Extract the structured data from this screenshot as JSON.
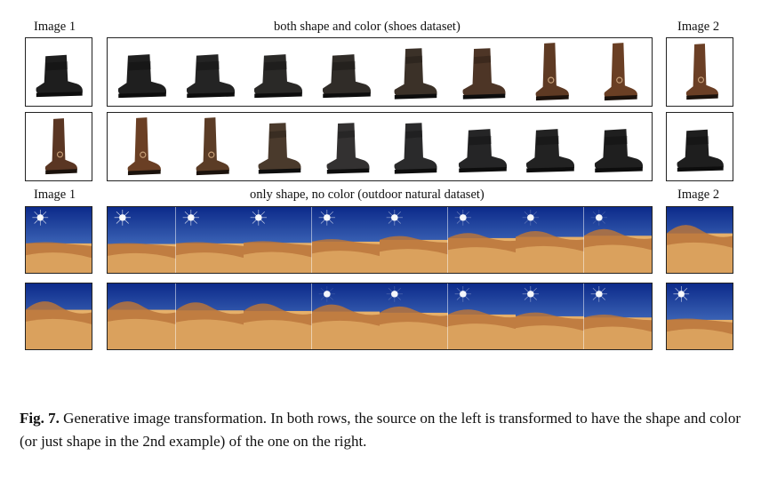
{
  "labels": {
    "shoes_left": "Image 1",
    "shoes_title": "both shape and color (shoes dataset)",
    "shoes_right": "Image 2",
    "desert_left": "Image 1",
    "desert_title": "only shape, no color (outdoor natural dataset)",
    "desert_right": "Image 2"
  },
  "caption": {
    "prefix": "Fig. 7.",
    "text": " Generative image transformation. In both rows, the source on the left is transformed to have the shape and color (or just shape in the 2nd example) of the one on the right."
  },
  "shoe_row_1": {
    "source": {
      "shape": "ankle",
      "color": "#1e1e1e"
    },
    "target": {
      "shape": "tall",
      "color": "#6b3f25"
    },
    "steps": [
      {
        "shape": "ankle",
        "color": "#1f1f1f"
      },
      {
        "shape": "ankle",
        "color": "#242424"
      },
      {
        "shape": "ankle",
        "color": "#2a2927"
      },
      {
        "shape": "ankle",
        "color": "#302c28"
      },
      {
        "shape": "mid",
        "color": "#3b3128"
      },
      {
        "shape": "mid",
        "color": "#4d3526"
      },
      {
        "shape": "tall",
        "color": "#5e3a23"
      },
      {
        "shape": "tall",
        "color": "#6a3f24"
      }
    ]
  },
  "shoe_row_2": {
    "source": {
      "shape": "tall",
      "color": "#5a3623"
    },
    "target": {
      "shape": "ankle",
      "color": "#1e1e1e"
    },
    "steps": [
      {
        "shape": "tall",
        "color": "#6a3f24"
      },
      {
        "shape": "tall",
        "color": "#5b3c26"
      },
      {
        "shape": "mid",
        "color": "#4a3a2c"
      },
      {
        "shape": "mid",
        "color": "#333131"
      },
      {
        "shape": "mid",
        "color": "#2a2a2b"
      },
      {
        "shape": "ankle",
        "color": "#252526"
      },
      {
        "shape": "ankle",
        "color": "#222"
      },
      {
        "shape": "ankle",
        "color": "#1f1f1f"
      }
    ]
  },
  "desert_row_1": {
    "source": {
      "scene": "sun",
      "dunes": 0.15
    },
    "target": {
      "scene": "dunes",
      "dunes": 1.0
    },
    "steps": [
      0.1,
      0.15,
      0.2,
      0.3,
      0.45,
      0.6,
      0.7,
      0.8
    ]
  },
  "desert_row_2": {
    "source": {
      "scene": "dunes",
      "dunes": 1.0
    },
    "target": {
      "scene": "sun",
      "dunes": 0.15
    },
    "steps": [
      1.0,
      0.95,
      0.9,
      0.85,
      0.75,
      0.6,
      0.45,
      0.35
    ]
  },
  "colors": {
    "sky_top": "#0c2a8a",
    "sky_bottom": "#5f8fd6",
    "sand_light": "#e6b06a",
    "sand_dark": "#b8743a"
  }
}
